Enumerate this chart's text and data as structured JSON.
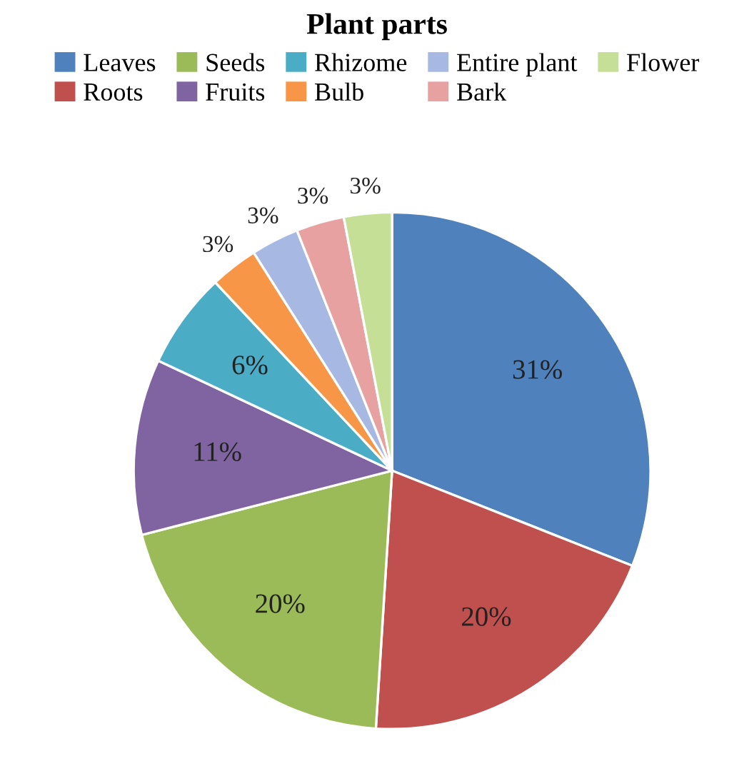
{
  "chart_data": {
    "type": "pie",
    "title": "Plant parts",
    "categories": [
      "Leaves",
      "Roots",
      "Seeds",
      "Fruits",
      "Rhizome",
      "Bulb",
      "Entire plant",
      "Bark",
      "Flower"
    ],
    "values": [
      31,
      20,
      20,
      11,
      6,
      3,
      3,
      3,
      3
    ],
    "colors": [
      "#4f81bd",
      "#c0504d",
      "#9bbb59",
      "#8064a2",
      "#4bacc6",
      "#f79646",
      "#a7b9e3",
      "#e6a1a0",
      "#c6df97"
    ],
    "value_labels": [
      "31%",
      "20%",
      "20%",
      "11%",
      "6%",
      "3%",
      "3%",
      "3%",
      "3%"
    ],
    "legend": "top"
  }
}
